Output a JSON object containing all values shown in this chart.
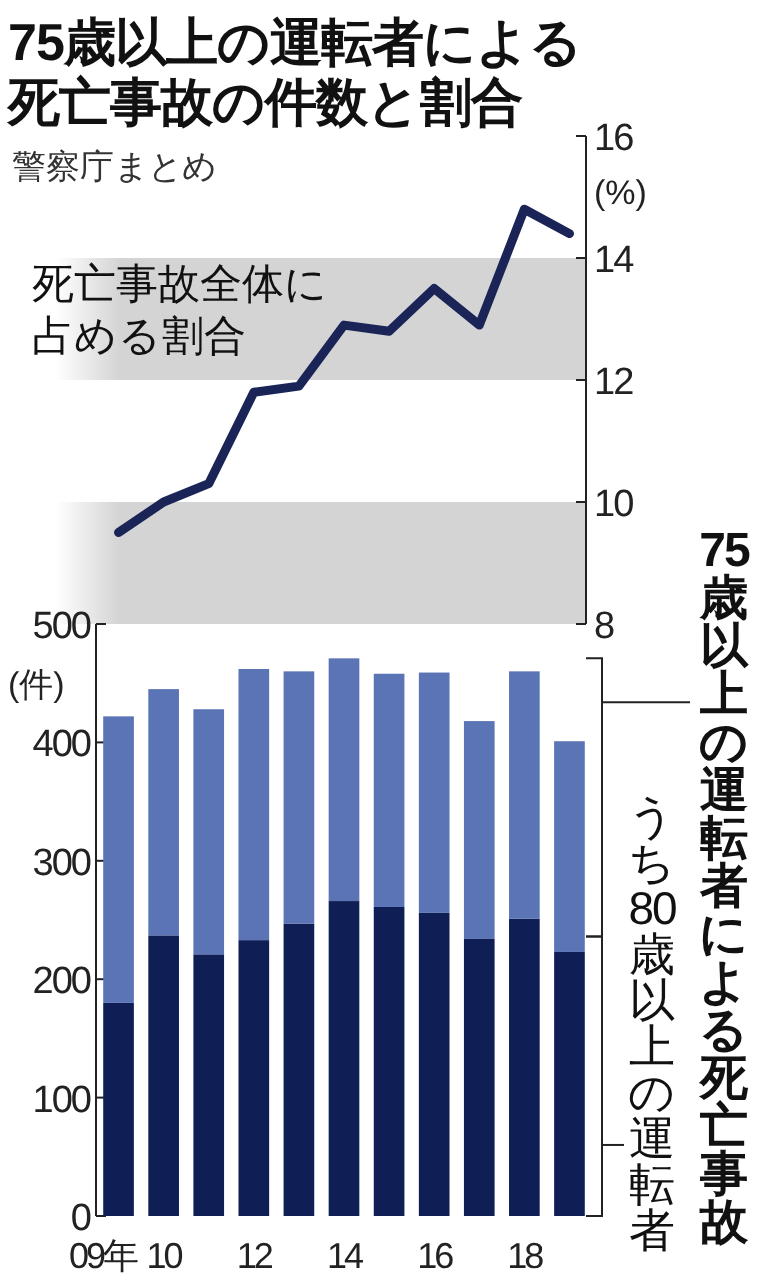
{
  "chart_data": [
    {
      "type": "line",
      "title": "75歳以上の運転者による死亡事故の件数と割合",
      "subtitle": "警察庁まとめ",
      "ylabel": "(%)",
      "categories": [
        null,
        null,
        null,
        null,
        null,
        null,
        null,
        null,
        null,
        null,
        null
      ],
      "series": [
        {
          "name": "死亡事故全体に占める割合",
          "color": "#1a2456",
          "values": [
            9.5,
            10.0,
            10.3,
            11.8,
            11.9,
            12.9,
            12.8,
            13.5,
            12.9,
            14.8,
            14.4
          ]
        }
      ],
      "ylim": [
        8,
        16
      ],
      "yticks": [
        8,
        10,
        12,
        14,
        16
      ],
      "bands": [
        {
          "axis": "y",
          "from": 8,
          "to": 10,
          "color": "#d4d4d4"
        },
        {
          "axis": "y",
          "from": 12,
          "to": 14,
          "color": "#d4d4d4"
        }
      ]
    },
    {
      "type": "bar",
      "stacked": true,
      "ylabel": "(件)",
      "categories": [
        "09年",
        "10",
        null,
        "12",
        null,
        "14",
        null,
        "16",
        null,
        "18",
        null
      ],
      "series": [
        {
          "name": "うち80歳以上の運転者",
          "color": "#0f1f55",
          "values": [
            180,
            237,
            221,
            233,
            247,
            266,
            261,
            256,
            234,
            251,
            223
          ]
        },
        {
          "name": "75歳以上の運転者による死亡事故",
          "color": "#5b74b6",
          "values": [
            242,
            208,
            207,
            229,
            213,
            205,
            197,
            203,
            184,
            209,
            178
          ]
        }
      ],
      "ylim": [
        0,
        500
      ],
      "yticks": [
        0,
        100,
        200,
        300,
        400,
        500
      ]
    }
  ]
}
